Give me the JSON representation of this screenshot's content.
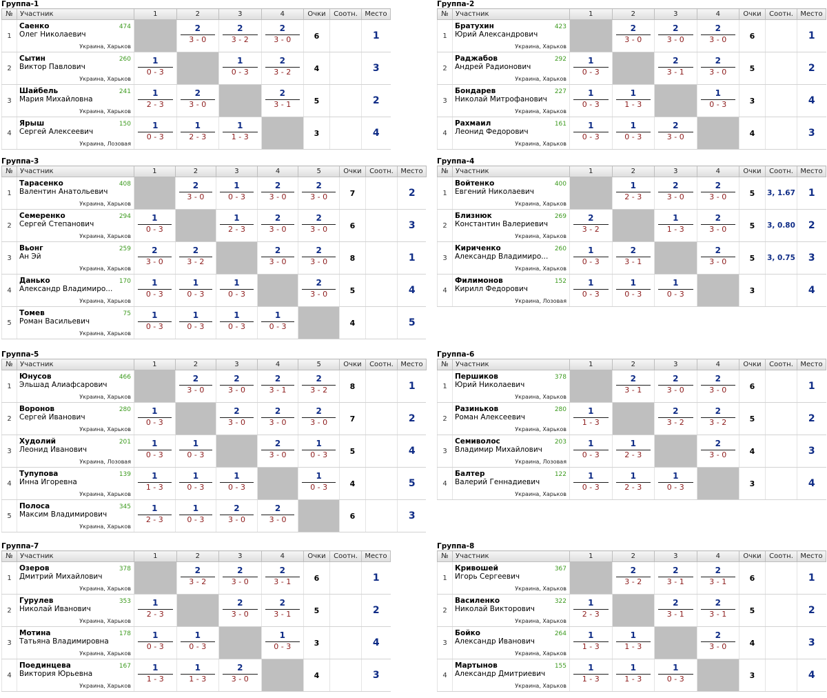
{
  "headers": {
    "num": "№",
    "player": "Участник",
    "points": "Очки",
    "ratio": "Соотн.",
    "place": "Место"
  },
  "groups": [
    {
      "title": "Группа-1",
      "players": [
        {
          "n": "1",
          "surname": "Саенко",
          "name": "Олег Николаевич",
          "rating": "474",
          "city": "Украина, Харьков",
          "results": [
            null,
            {
              "w": "2",
              "s": "3 - 0"
            },
            {
              "w": "2",
              "s": "3 - 2"
            },
            {
              "w": "2",
              "s": "3 - 0"
            }
          ],
          "points": "6",
          "ratio": "",
          "place": "1"
        },
        {
          "n": "2",
          "surname": "Сытин",
          "name": "Виктор Павлович",
          "rating": "260",
          "city": "Украина, Харьков",
          "results": [
            {
              "w": "1",
              "s": "0 - 3"
            },
            null,
            {
              "w": "1",
              "s": "0 - 3"
            },
            {
              "w": "2",
              "s": "3 - 2"
            }
          ],
          "points": "4",
          "ratio": "",
          "place": "3"
        },
        {
          "n": "3",
          "surname": "Шайбель",
          "name": "Мария Михайловна",
          "rating": "241",
          "city": "Украина, Харьков",
          "results": [
            {
              "w": "1",
              "s": "2 - 3"
            },
            {
              "w": "2",
              "s": "3 - 0"
            },
            null,
            {
              "w": "2",
              "s": "3 - 1"
            }
          ],
          "points": "5",
          "ratio": "",
          "place": "2"
        },
        {
          "n": "4",
          "surname": "Ярыш",
          "name": "Сергей Алексеевич",
          "rating": "150",
          "city": "Украина, Лозовая",
          "results": [
            {
              "w": "1",
              "s": "0 - 3"
            },
            {
              "w": "1",
              "s": "2 - 3"
            },
            {
              "w": "1",
              "s": "1 - 3"
            },
            null
          ],
          "points": "3",
          "ratio": "",
          "place": "4"
        }
      ]
    },
    {
      "title": "Группа-2",
      "players": [
        {
          "n": "1",
          "surname": "Братухин",
          "name": "Юрий Александрович",
          "rating": "423",
          "city": "Украина, Харьков",
          "results": [
            null,
            {
              "w": "2",
              "s": "3 - 0"
            },
            {
              "w": "2",
              "s": "3 - 0"
            },
            {
              "w": "2",
              "s": "3 - 0"
            }
          ],
          "points": "6",
          "ratio": "",
          "place": "1"
        },
        {
          "n": "2",
          "surname": "Раджабов",
          "name": "Андрей Радионович",
          "rating": "292",
          "city": "Украина, Харьков",
          "results": [
            {
              "w": "1",
              "s": "0 - 3"
            },
            null,
            {
              "w": "2",
              "s": "3 - 1"
            },
            {
              "w": "2",
              "s": "3 - 0"
            }
          ],
          "points": "5",
          "ratio": "",
          "place": "2"
        },
        {
          "n": "3",
          "surname": "Бондарев",
          "name": "Николай Митрофанович",
          "rating": "227",
          "city": "Украина, Харьков",
          "results": [
            {
              "w": "1",
              "s": "0 - 3"
            },
            {
              "w": "1",
              "s": "1 - 3"
            },
            null,
            {
              "w": "1",
              "s": "0 - 3"
            }
          ],
          "points": "3",
          "ratio": "",
          "place": "4"
        },
        {
          "n": "4",
          "surname": "Рахмаил",
          "name": "Леонид Федорович",
          "rating": "161",
          "city": "Украина, Харьков",
          "results": [
            {
              "w": "1",
              "s": "0 - 3"
            },
            {
              "w": "1",
              "s": "0 - 3"
            },
            {
              "w": "2",
              "s": "3 - 0"
            },
            null
          ],
          "points": "4",
          "ratio": "",
          "place": "3"
        }
      ]
    },
    {
      "title": "Группа-3",
      "players": [
        {
          "n": "1",
          "surname": "Тарасенко",
          "name": "Валентин Анатольевич",
          "rating": "408",
          "city": "Украина, Харьков",
          "results": [
            null,
            {
              "w": "2",
              "s": "3 - 0"
            },
            {
              "w": "1",
              "s": "0 - 3"
            },
            {
              "w": "2",
              "s": "3 - 0"
            },
            {
              "w": "2",
              "s": "3 - 0"
            }
          ],
          "points": "7",
          "ratio": "",
          "place": "2"
        },
        {
          "n": "2",
          "surname": "Семеренко",
          "name": "Сергей Степанович",
          "rating": "294",
          "city": "Украина, Харьков",
          "results": [
            {
              "w": "1",
              "s": "0 - 3"
            },
            null,
            {
              "w": "1",
              "s": "2 - 3"
            },
            {
              "w": "2",
              "s": "3 - 0"
            },
            {
              "w": "2",
              "s": "3 - 0"
            }
          ],
          "points": "6",
          "ratio": "",
          "place": "3"
        },
        {
          "n": "3",
          "surname": "Вьонг",
          "name": "Ан Эй",
          "rating": "259",
          "city": "Украина, Харьков",
          "results": [
            {
              "w": "2",
              "s": "3 - 0"
            },
            {
              "w": "2",
              "s": "3 - 2"
            },
            null,
            {
              "w": "2",
              "s": "3 - 0"
            },
            {
              "w": "2",
              "s": "3 - 0"
            }
          ],
          "points": "8",
          "ratio": "",
          "place": "1"
        },
        {
          "n": "4",
          "surname": "Данько",
          "name": "Александр Владимиро...",
          "rating": "170",
          "city": "Украина, Харьков",
          "results": [
            {
              "w": "1",
              "s": "0 - 3"
            },
            {
              "w": "1",
              "s": "0 - 3"
            },
            {
              "w": "1",
              "s": "0 - 3"
            },
            null,
            {
              "w": "2",
              "s": "3 - 0"
            }
          ],
          "points": "5",
          "ratio": "",
          "place": "4"
        },
        {
          "n": "5",
          "surname": "Томев",
          "name": "Роман Васильевич",
          "rating": "75",
          "city": "Украина, Харьков",
          "results": [
            {
              "w": "1",
              "s": "0 - 3"
            },
            {
              "w": "1",
              "s": "0 - 3"
            },
            {
              "w": "1",
              "s": "0 - 3"
            },
            {
              "w": "1",
              "s": "0 - 3"
            },
            null
          ],
          "points": "4",
          "ratio": "",
          "place": "5"
        }
      ]
    },
    {
      "title": "Группа-4",
      "players": [
        {
          "n": "1",
          "surname": "Войтенко",
          "name": "Евгений Николаевич",
          "rating": "400",
          "city": "Украина, Харьков",
          "results": [
            null,
            {
              "w": "1",
              "s": "2 - 3"
            },
            {
              "w": "2",
              "s": "3 - 0"
            },
            {
              "w": "2",
              "s": "3 - 0"
            }
          ],
          "points": "5",
          "ratio": "3, 1.67",
          "place": "1"
        },
        {
          "n": "2",
          "surname": "Близнюк",
          "name": "Константин Валериевич",
          "rating": "269",
          "city": "Украина, Харьков",
          "results": [
            {
              "w": "2",
              "s": "3 - 2"
            },
            null,
            {
              "w": "1",
              "s": "1 - 3"
            },
            {
              "w": "2",
              "s": "3 - 0"
            }
          ],
          "points": "5",
          "ratio": "3, 0.80",
          "place": "2"
        },
        {
          "n": "3",
          "surname": "Кириченко",
          "name": "Александр Владимиро...",
          "rating": "260",
          "city": "Украина, Харьков",
          "results": [
            {
              "w": "1",
              "s": "0 - 3"
            },
            {
              "w": "2",
              "s": "3 - 1"
            },
            null,
            {
              "w": "2",
              "s": "3 - 0"
            }
          ],
          "points": "5",
          "ratio": "3, 0.75",
          "place": "3"
        },
        {
          "n": "4",
          "surname": "Филимонов",
          "name": "Кирилл Федорович",
          "rating": "152",
          "city": "Украина, Лозовая",
          "results": [
            {
              "w": "1",
              "s": "0 - 3"
            },
            {
              "w": "1",
              "s": "0 - 3"
            },
            {
              "w": "1",
              "s": "0 - 3"
            },
            null
          ],
          "points": "3",
          "ratio": "",
          "place": "4"
        }
      ]
    },
    {
      "title": "Группа-5",
      "players": [
        {
          "n": "1",
          "surname": "Юнусов",
          "name": "Эльшад Алиафсарович",
          "rating": "466",
          "city": "Украина, Харьков",
          "results": [
            null,
            {
              "w": "2",
              "s": "3 - 0"
            },
            {
              "w": "2",
              "s": "3 - 0"
            },
            {
              "w": "2",
              "s": "3 - 1"
            },
            {
              "w": "2",
              "s": "3 - 2"
            }
          ],
          "points": "8",
          "ratio": "",
          "place": "1"
        },
        {
          "n": "2",
          "surname": "Воронов",
          "name": "Сергей Иванович",
          "rating": "280",
          "city": "Украина, Харьков",
          "results": [
            {
              "w": "1",
              "s": "0 - 3"
            },
            null,
            {
              "w": "2",
              "s": "3 - 0"
            },
            {
              "w": "2",
              "s": "3 - 0"
            },
            {
              "w": "2",
              "s": "3 - 0"
            }
          ],
          "points": "7",
          "ratio": "",
          "place": "2"
        },
        {
          "n": "3",
          "surname": "Худолий",
          "name": "Леонид Иванович",
          "rating": "201",
          "city": "Украина, Лозовая",
          "results": [
            {
              "w": "1",
              "s": "0 - 3"
            },
            {
              "w": "1",
              "s": "0 - 3"
            },
            null,
            {
              "w": "2",
              "s": "3 - 0"
            },
            {
              "w": "1",
              "s": "0 - 3"
            }
          ],
          "points": "5",
          "ratio": "",
          "place": "4"
        },
        {
          "n": "4",
          "surname": "Тупупова",
          "name": "Инна Игоревна",
          "rating": "139",
          "city": "Украина, Харьков",
          "results": [
            {
              "w": "1",
              "s": "1 - 3"
            },
            {
              "w": "1",
              "s": "0 - 3"
            },
            {
              "w": "1",
              "s": "0 - 3"
            },
            null,
            {
              "w": "1",
              "s": "0 - 3"
            }
          ],
          "points": "4",
          "ratio": "",
          "place": "5"
        },
        {
          "n": "5",
          "surname": "Полоса",
          "name": "Максим Владимирович",
          "rating": "345",
          "city": "Украина, Харьков",
          "results": [
            {
              "w": "1",
              "s": "2 - 3"
            },
            {
              "w": "1",
              "s": "0 - 3"
            },
            {
              "w": "2",
              "s": "3 - 0"
            },
            {
              "w": "2",
              "s": "3 - 0"
            },
            null
          ],
          "points": "6",
          "ratio": "",
          "place": "3"
        }
      ]
    },
    {
      "title": "Группа-6",
      "players": [
        {
          "n": "1",
          "surname": "Першиков",
          "name": "Юрий Николаевич",
          "rating": "378",
          "city": "Украина, Харьков",
          "results": [
            null,
            {
              "w": "2",
              "s": "3 - 1"
            },
            {
              "w": "2",
              "s": "3 - 0"
            },
            {
              "w": "2",
              "s": "3 - 0"
            }
          ],
          "points": "6",
          "ratio": "",
          "place": "1"
        },
        {
          "n": "2",
          "surname": "Разиньков",
          "name": "Роман Алексеевич",
          "rating": "280",
          "city": "Украина, Харьков",
          "results": [
            {
              "w": "1",
              "s": "1 - 3"
            },
            null,
            {
              "w": "2",
              "s": "3 - 2"
            },
            {
              "w": "2",
              "s": "3 - 2"
            }
          ],
          "points": "5",
          "ratio": "",
          "place": "2"
        },
        {
          "n": "3",
          "surname": "Семиволос",
          "name": "Владимир Михайлович",
          "rating": "203",
          "city": "Украина, Лозовая",
          "results": [
            {
              "w": "1",
              "s": "0 - 3"
            },
            {
              "w": "1",
              "s": "2 - 3"
            },
            null,
            {
              "w": "2",
              "s": "3 - 0"
            }
          ],
          "points": "4",
          "ratio": "",
          "place": "3"
        },
        {
          "n": "4",
          "surname": "Балтер",
          "name": "Валерий Геннадиевич",
          "rating": "122",
          "city": "Украина, Харьков",
          "results": [
            {
              "w": "1",
              "s": "0 - 3"
            },
            {
              "w": "1",
              "s": "2 - 3"
            },
            {
              "w": "1",
              "s": "0 - 3"
            },
            null
          ],
          "points": "3",
          "ratio": "",
          "place": "4"
        }
      ]
    },
    {
      "title": "Группа-7",
      "players": [
        {
          "n": "1",
          "surname": "Озеров",
          "name": "Дмитрий Михайлович",
          "rating": "378",
          "city": "Украина, Харьков",
          "results": [
            null,
            {
              "w": "2",
              "s": "3 - 2"
            },
            {
              "w": "2",
              "s": "3 - 0"
            },
            {
              "w": "2",
              "s": "3 - 1"
            }
          ],
          "points": "6",
          "ratio": "",
          "place": "1"
        },
        {
          "n": "2",
          "surname": "Гурулев",
          "name": "Николай Иванович",
          "rating": "353",
          "city": "Украина, Харьков",
          "results": [
            {
              "w": "1",
              "s": "2 - 3"
            },
            null,
            {
              "w": "2",
              "s": "3 - 0"
            },
            {
              "w": "2",
              "s": "3 - 1"
            }
          ],
          "points": "5",
          "ratio": "",
          "place": "2"
        },
        {
          "n": "3",
          "surname": "Мотина",
          "name": "Татьяна Владимировна",
          "rating": "178",
          "city": "Украина, Харьков",
          "results": [
            {
              "w": "1",
              "s": "0 - 3"
            },
            {
              "w": "1",
              "s": "0 - 3"
            },
            null,
            {
              "w": "1",
              "s": "0 - 3"
            }
          ],
          "points": "3",
          "ratio": "",
          "place": "4"
        },
        {
          "n": "4",
          "surname": "Поединцева",
          "name": "Виктория Юрьевна",
          "rating": "167",
          "city": "Украина, Харьков",
          "results": [
            {
              "w": "1",
              "s": "1 - 3"
            },
            {
              "w": "1",
              "s": "1 - 3"
            },
            {
              "w": "2",
              "s": "3 - 0"
            },
            null
          ],
          "points": "4",
          "ratio": "",
          "place": "3"
        }
      ]
    },
    {
      "title": "Группа-8",
      "players": [
        {
          "n": "1",
          "surname": "Кривошей",
          "name": "Игорь Сергеевич",
          "rating": "367",
          "city": "Украина, Харьков",
          "results": [
            null,
            {
              "w": "2",
              "s": "3 - 2"
            },
            {
              "w": "2",
              "s": "3 - 1"
            },
            {
              "w": "2",
              "s": "3 - 1"
            }
          ],
          "points": "6",
          "ratio": "",
          "place": "1"
        },
        {
          "n": "2",
          "surname": "Василенко",
          "name": "Николай Викторович",
          "rating": "322",
          "city": "Украина, Харьков",
          "results": [
            {
              "w": "1",
              "s": "2 - 3"
            },
            null,
            {
              "w": "2",
              "s": "3 - 1"
            },
            {
              "w": "2",
              "s": "3 - 1"
            }
          ],
          "points": "5",
          "ratio": "",
          "place": "2"
        },
        {
          "n": "3",
          "surname": "Бойко",
          "name": "Александр Иванович",
          "rating": "264",
          "city": "Украина, Харьков",
          "results": [
            {
              "w": "1",
              "s": "1 - 3"
            },
            {
              "w": "1",
              "s": "1 - 3"
            },
            null,
            {
              "w": "2",
              "s": "3 - 0"
            }
          ],
          "points": "4",
          "ratio": "",
          "place": "3"
        },
        {
          "n": "4",
          "surname": "Мартынов",
          "name": "Александр Дмитриевич",
          "rating": "155",
          "city": "Украина, Харьков",
          "results": [
            {
              "w": "1",
              "s": "1 - 3"
            },
            {
              "w": "1",
              "s": "1 - 3"
            },
            {
              "w": "1",
              "s": "0 - 3"
            },
            null
          ],
          "points": "3",
          "ratio": "",
          "place": "4"
        }
      ]
    }
  ]
}
